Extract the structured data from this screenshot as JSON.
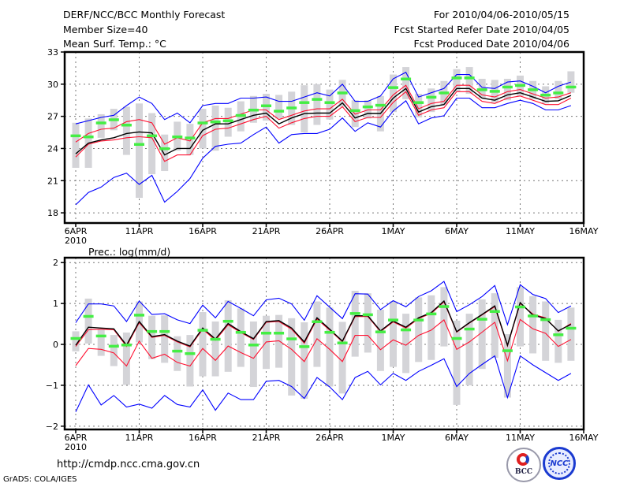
{
  "header": {
    "title": "DERF/NCC/BCC Monthly Forecast",
    "member_size": "Member Size=40",
    "variable": "Mean Surf. Temp.: °C",
    "period": "For 2010/04/06-2010/05/15",
    "start_date": "Fcst Started Refer Date 2010/04/05",
    "produced_date": "Fcst Produced Date 2010/04/06"
  },
  "footer": {
    "url": "http://cmdp.ncc.cma.gov.cn",
    "credit": "GrADS: COLA/IGES",
    "logos": [
      "BCC",
      "NCC"
    ]
  },
  "colors": {
    "max_min": "#0000ff",
    "spread": "#ff1030",
    "mean": "#000000",
    "marker": "#44ee44",
    "bar": "#d4d4d8"
  },
  "chart_data": [
    {
      "type": "line",
      "title": "Mean Surf. Temp.: °C",
      "start_day": "2010-04-06",
      "ylim": [
        17.05,
        33
      ],
      "yticks": [
        18,
        21,
        24,
        27,
        30,
        33
      ],
      "xticks": [
        {
          "day": 0,
          "label": "6APR"
        },
        {
          "day": 5,
          "label": "11APR"
        },
        {
          "day": 10,
          "label": "16APR"
        },
        {
          "day": 15,
          "label": "21APR"
        },
        {
          "day": 20,
          "label": "26APR"
        },
        {
          "day": 25,
          "label": "1MAY"
        },
        {
          "day": 30,
          "label": "6MAY"
        },
        {
          "day": 35,
          "label": "11MAY"
        },
        {
          "day": 40,
          "label": "16MAY"
        }
      ],
      "year_label": "2010",
      "grid": true,
      "series": [
        {
          "name": "max",
          "color": "max_min",
          "values": [
            26.3,
            26.6,
            26.9,
            27.1,
            28.0,
            28.8,
            28.2,
            26.7,
            27.3,
            26.4,
            28.0,
            28.2,
            28.2,
            28.7,
            28.7,
            28.8,
            28.4,
            28.4,
            28.8,
            29.2,
            28.9,
            30.0,
            28.4,
            28.4,
            28.9,
            30.5,
            31.1,
            28.8,
            29.2,
            29.6,
            30.9,
            30.9,
            29.7,
            29.6,
            30.2,
            30.3,
            29.8,
            29.2,
            29.8,
            30.2
          ]
        },
        {
          "name": "min",
          "color": "max_min",
          "values": [
            18.75,
            19.9,
            20.4,
            21.3,
            21.7,
            20.65,
            21.5,
            19.0,
            20.0,
            21.2,
            23.1,
            24.2,
            24.4,
            24.5,
            25.3,
            26.0,
            24.5,
            25.3,
            25.4,
            25.4,
            25.8,
            26.85,
            25.6,
            26.4,
            26.0,
            27.5,
            28.45,
            26.3,
            26.85,
            27.05,
            28.7,
            28.7,
            27.8,
            27.8,
            28.2,
            28.5,
            28.2,
            27.6,
            27.6,
            28.0
          ]
        },
        {
          "name": "upper",
          "color": "spread",
          "values": [
            24.6,
            25.4,
            25.8,
            25.9,
            26.5,
            26.7,
            26.4,
            24.4,
            25.0,
            24.7,
            26.4,
            26.8,
            26.8,
            27.2,
            27.6,
            27.6,
            26.7,
            27.1,
            27.5,
            27.7,
            27.7,
            28.6,
            27.2,
            27.6,
            27.6,
            29.0,
            29.9,
            27.7,
            28.2,
            28.4,
            29.9,
            29.9,
            29.0,
            28.8,
            29.3,
            29.5,
            29.1,
            28.7,
            28.8,
            29.2
          ]
        },
        {
          "name": "lower",
          "color": "spread",
          "values": [
            23.2,
            24.4,
            24.7,
            24.8,
            25.0,
            25.1,
            25.0,
            22.8,
            23.4,
            23.4,
            25.2,
            25.8,
            25.9,
            26.3,
            26.7,
            27.0,
            25.9,
            26.4,
            26.8,
            27.0,
            27.0,
            27.9,
            26.5,
            26.9,
            26.9,
            28.3,
            29.3,
            27.1,
            27.6,
            27.8,
            29.3,
            29.3,
            28.4,
            28.2,
            28.7,
            28.9,
            28.5,
            28.1,
            28.1,
            28.7
          ]
        },
        {
          "name": "mean",
          "color": "mean",
          "values": [
            23.5,
            24.5,
            24.8,
            25.0,
            25.4,
            25.55,
            25.45,
            23.4,
            24.0,
            24.0,
            25.7,
            26.3,
            26.3,
            26.7,
            27.1,
            27.3,
            26.3,
            26.85,
            27.25,
            27.3,
            27.3,
            28.25,
            26.85,
            27.27,
            27.27,
            28.7,
            29.6,
            27.4,
            27.9,
            28.1,
            29.6,
            29.6,
            28.7,
            28.5,
            29.0,
            29.2,
            28.8,
            28.4,
            28.45,
            28.95
          ]
        }
      ],
      "bars": {
        "low": [
          22.2,
          22.2,
          25.0,
          25.7,
          23.4,
          19.4,
          21.6,
          21.9,
          23.8,
          23.4,
          24.0,
          23.8,
          25.1,
          25.6,
          26.4,
          26.6,
          26.8,
          26.2,
          25.5,
          26.2,
          26.7,
          27.9,
          26.0,
          26.8,
          25.6,
          27.4,
          28.6,
          26.9,
          27.4,
          28.1,
          29.3,
          29.1,
          28.7,
          28.3,
          28.5,
          28.9,
          28.6,
          28.2,
          28.6,
          29.2
        ],
        "high": [
          26.4,
          26.8,
          27.2,
          27.7,
          27.9,
          28.2,
          27.3,
          25.3,
          26.5,
          26.3,
          27.7,
          28.0,
          27.8,
          28.4,
          28.9,
          29.1,
          29.0,
          29.3,
          29.9,
          30.0,
          29.5,
          30.4,
          28.5,
          28.5,
          28.9,
          30.9,
          31.6,
          29.1,
          29.6,
          30.3,
          31.4,
          31.6,
          30.5,
          30.4,
          30.5,
          30.8,
          30.3,
          29.8,
          30.3,
          31.2
        ]
      },
      "markers": [
        25.2,
        25.1,
        26.4,
        26.7,
        26.2,
        24.4,
        25.2,
        24.0,
        25.1,
        25.0,
        26.4,
        26.5,
        26.6,
        27.1,
        27.6,
        28.0,
        27.5,
        27.8,
        28.3,
        28.6,
        28.3,
        29.2,
        27.55,
        27.9,
        28.05,
        29.7,
        30.5,
        28.3,
        28.8,
        29.2,
        30.6,
        30.6,
        29.5,
        29.35,
        29.75,
        29.9,
        29.5,
        29.0,
        29.2,
        29.75
      ]
    },
    {
      "type": "line",
      "title": "Prec.: log(mm/d)",
      "start_day": "2010-04-06",
      "ylim": [
        -2.08,
        2.12
      ],
      "yticks": [
        -2,
        -1,
        0,
        1,
        2
      ],
      "xticks": [
        {
          "day": 0,
          "label": "6APR"
        },
        {
          "day": 5,
          "label": "11APR"
        },
        {
          "day": 10,
          "label": "16APR"
        },
        {
          "day": 15,
          "label": "21APR"
        },
        {
          "day": 20,
          "label": "26APR"
        },
        {
          "day": 25,
          "label": "1MAY"
        },
        {
          "day": 30,
          "label": "6MAY"
        },
        {
          "day": 35,
          "label": "11MAY"
        },
        {
          "day": 40,
          "label": "16MAY"
        }
      ],
      "year_label": "2010",
      "grid": true,
      "series": [
        {
          "name": "max",
          "color": "max_min",
          "values": [
            0.53,
            0.99,
            0.99,
            0.94,
            0.56,
            1.06,
            0.73,
            0.75,
            0.6,
            0.51,
            0.96,
            0.65,
            1.05,
            0.88,
            0.7,
            1.09,
            1.13,
            0.99,
            0.59,
            1.19,
            0.91,
            0.63,
            1.24,
            1.23,
            0.85,
            1.07,
            0.92,
            1.17,
            1.31,
            1.54,
            0.8,
            0.97,
            1.17,
            1.44,
            0.48,
            1.46,
            1.22,
            1.12,
            0.78,
            0.94
          ]
        },
        {
          "name": "min",
          "color": "max_min",
          "values": [
            -1.65,
            -0.99,
            -1.48,
            -1.25,
            -1.53,
            -1.46,
            -1.56,
            -1.25,
            -1.47,
            -1.53,
            -1.11,
            -1.61,
            -1.19,
            -1.35,
            -1.35,
            -0.9,
            -0.88,
            -1.03,
            -1.32,
            -0.81,
            -1.04,
            -1.35,
            -0.81,
            -0.66,
            -0.99,
            -0.71,
            -0.88,
            -0.66,
            -0.51,
            -0.35,
            -1.03,
            -0.71,
            -0.49,
            -0.28,
            -1.3,
            -0.28,
            -0.5,
            -0.69,
            -0.88,
            -0.71
          ]
        },
        {
          "name": "upper",
          "color": "spread",
          "values": [
            -0.05,
            0.36,
            0.37,
            0.36,
            -0.05,
            0.53,
            0.17,
            0.22,
            0.06,
            -0.06,
            0.37,
            0.1,
            0.48,
            0.29,
            0.12,
            0.54,
            0.56,
            0.37,
            0.03,
            0.62,
            0.35,
            0.06,
            0.68,
            0.68,
            0.31,
            0.55,
            0.4,
            0.63,
            0.76,
            1.04,
            0.3,
            0.52,
            0.72,
            0.92,
            -0.04,
            1.0,
            0.74,
            0.65,
            0.32,
            0.51
          ]
        },
        {
          "name": "lower",
          "color": "spread",
          "values": [
            -0.52,
            -0.1,
            -0.12,
            -0.21,
            -0.53,
            0.08,
            -0.34,
            -0.24,
            -0.44,
            -0.53,
            -0.1,
            -0.39,
            -0.04,
            -0.2,
            -0.34,
            0.06,
            0.09,
            -0.12,
            -0.42,
            0.14,
            -0.12,
            -0.42,
            0.22,
            0.22,
            -0.13,
            0.11,
            -0.02,
            0.22,
            0.35,
            0.6,
            -0.12,
            0.06,
            0.3,
            0.54,
            -0.4,
            0.61,
            0.38,
            0.27,
            -0.05,
            0.12
          ]
        },
        {
          "name": "mean",
          "color": "mean",
          "values": [
            -0.02,
            0.42,
            0.4,
            0.38,
            -0.02,
            0.56,
            0.19,
            0.24,
            0.08,
            -0.04,
            0.4,
            0.13,
            0.51,
            0.31,
            0.14,
            0.56,
            0.58,
            0.4,
            0.06,
            0.65,
            0.37,
            0.08,
            0.7,
            0.7,
            0.33,
            0.57,
            0.42,
            0.65,
            0.78,
            1.06,
            0.31,
            0.53,
            0.73,
            0.94,
            -0.02,
            1.02,
            0.72,
            0.63,
            0.33,
            0.49
          ]
        }
      ],
      "bars": {
        "low": [
          -0.17,
          0.02,
          -0.28,
          -0.53,
          -0.99,
          0.05,
          -0.36,
          -0.45,
          -0.65,
          -1.03,
          -0.78,
          -0.78,
          -0.67,
          -0.55,
          -1.04,
          -0.6,
          -0.57,
          -1.25,
          -1.33,
          -0.55,
          -1.03,
          -1.2,
          -0.3,
          -0.2,
          -0.65,
          -0.55,
          -0.7,
          -0.43,
          -0.38,
          -0.05,
          -1.48,
          -1.0,
          -0.6,
          -0.33,
          -1.3,
          -0.05,
          -0.22,
          -0.4,
          -0.45,
          -0.4
        ],
        "high": [
          0.32,
          1.12,
          0.38,
          0.23,
          0.29,
          1.05,
          0.7,
          0.71,
          0.2,
          0.23,
          0.79,
          0.56,
          1.08,
          0.88,
          0.56,
          0.7,
          0.72,
          0.64,
          0.54,
          1.05,
          0.9,
          0.55,
          1.31,
          1.25,
          0.85,
          1.05,
          0.75,
          1.15,
          1.2,
          1.4,
          0.58,
          0.75,
          1.1,
          1.25,
          0.25,
          1.4,
          1.18,
          1.05,
          0.6,
          0.9
        ]
      },
      "markers": [
        0.15,
        0.69,
        0.21,
        -0.04,
        -0.01,
        0.72,
        0.32,
        0.32,
        -0.16,
        -0.22,
        0.35,
        0.13,
        0.57,
        0.3,
        -0.01,
        0.28,
        0.28,
        0.14,
        -0.05,
        0.56,
        0.3,
        0.04,
        0.76,
        0.73,
        0.31,
        0.6,
        0.36,
        0.6,
        0.75,
        0.93,
        0.15,
        0.38,
        0.62,
        0.81,
        -0.15,
        0.92,
        0.7,
        0.61,
        0.24,
        0.4
      ]
    }
  ]
}
